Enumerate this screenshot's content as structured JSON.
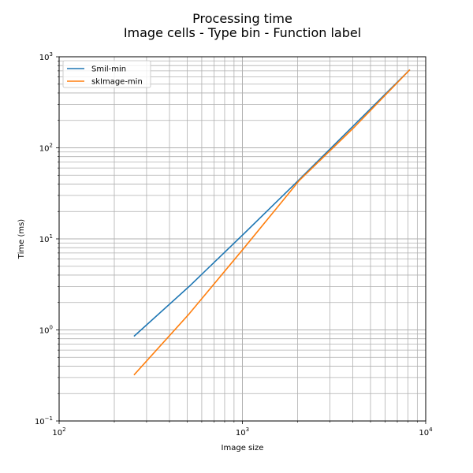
{
  "chart_data": {
    "type": "line",
    "title_line1": "Processing time",
    "title_line2": "Image cells - Type bin - Function label",
    "xlabel": "Image size",
    "ylabel": "Time (ms)",
    "xscale": "log",
    "yscale": "log",
    "xlim": [
      100,
      10000
    ],
    "ylim": [
      0.1,
      1000
    ],
    "grid": "on (major and minor)",
    "legend_position": "upper-left",
    "x_ticks": [
      {
        "value": 100,
        "base": "10",
        "exp": "2"
      },
      {
        "value": 1000,
        "base": "10",
        "exp": "3"
      },
      {
        "value": 10000,
        "base": "10",
        "exp": "4"
      }
    ],
    "y_ticks": [
      {
        "value": 0.1,
        "base": "10",
        "exp": "−1"
      },
      {
        "value": 1,
        "base": "10",
        "exp": "0"
      },
      {
        "value": 10,
        "base": "10",
        "exp": "1"
      },
      {
        "value": 100,
        "base": "10",
        "exp": "2"
      },
      {
        "value": 1000,
        "base": "10",
        "exp": "3"
      }
    ],
    "series": [
      {
        "name": "Smil-min",
        "color": "#1f77b4",
        "x": [
          256,
          512,
          1024,
          2048,
          4096,
          8192
        ],
        "y": [
          0.85,
          3.0,
          11.5,
          45,
          180,
          720
        ]
      },
      {
        "name": "skImage-min",
        "color": "#ff7f0e",
        "x": [
          256,
          512,
          1024,
          2048,
          4096,
          8192
        ],
        "y": [
          0.32,
          1.5,
          8.0,
          44,
          170,
          720
        ]
      }
    ]
  }
}
